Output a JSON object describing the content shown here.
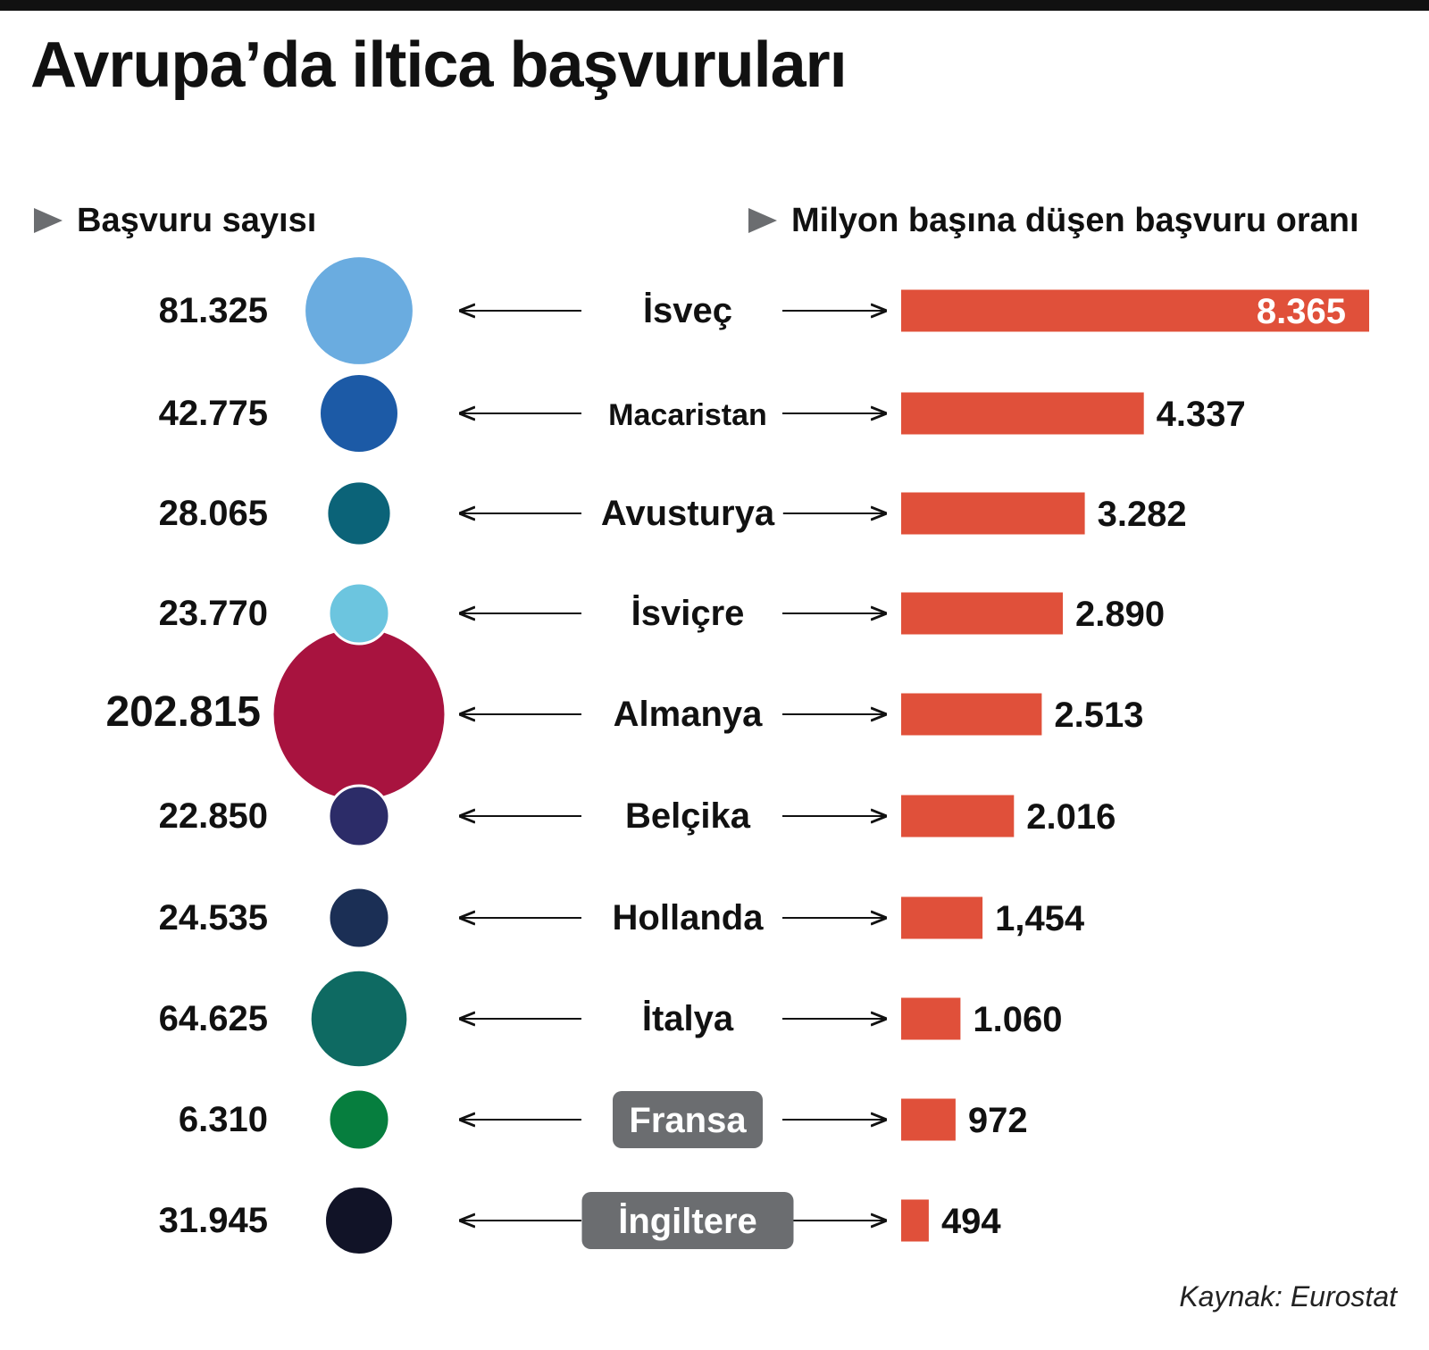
{
  "title": "Avrupa’da iltica başvuruları",
  "left_header": "Başvuru sayısı",
  "right_header": "Milyon başına düşen başvuru oranı",
  "source": "Kaynak: Eurostat",
  "colors": {
    "bar": "#e0503a",
    "arrow_marker": "#6b6d70",
    "label_box": "#6b6d70"
  },
  "chart_data": {
    "type": "bar",
    "categories": [
      "İsveç",
      "Macaristan",
      "Avusturya",
      "İsviçre",
      "Almanya",
      "Belçika",
      "Hollanda",
      "İtalya",
      "Fransa",
      "İngiltere"
    ],
    "series": [
      {
        "name": "Başvuru sayısı",
        "values": [
          81325,
          42775,
          28065,
          23770,
          202815,
          22850,
          24535,
          64625,
          6310,
          31945
        ],
        "labels": [
          "81.325",
          "42.775",
          "28.065",
          "23.770",
          "202.815",
          "22.850",
          "24.535",
          "64.625",
          "6.310",
          "31.945"
        ],
        "colors": [
          "#6aace0",
          "#1c5aa6",
          "#0b6378",
          "#6cc5df",
          "#a8133f",
          "#2c2c68",
          "#1b2f55",
          "#0e6a62",
          "#067e3e",
          "#111327"
        ]
      },
      {
        "name": "Milyon başına düşen başvuru oranı",
        "values": [
          8365,
          4337,
          3282,
          2890,
          2513,
          2016,
          1454,
          1060,
          972,
          494
        ],
        "labels": [
          "8.365",
          "4.337",
          "3.282",
          "2.890",
          "2.513",
          "2.016",
          "1,454",
          "1.060",
          "972",
          "494"
        ]
      }
    ],
    "highlighted_categories": [
      "Fransa",
      "İngiltere"
    ],
    "emphasized_count": "202.815"
  }
}
